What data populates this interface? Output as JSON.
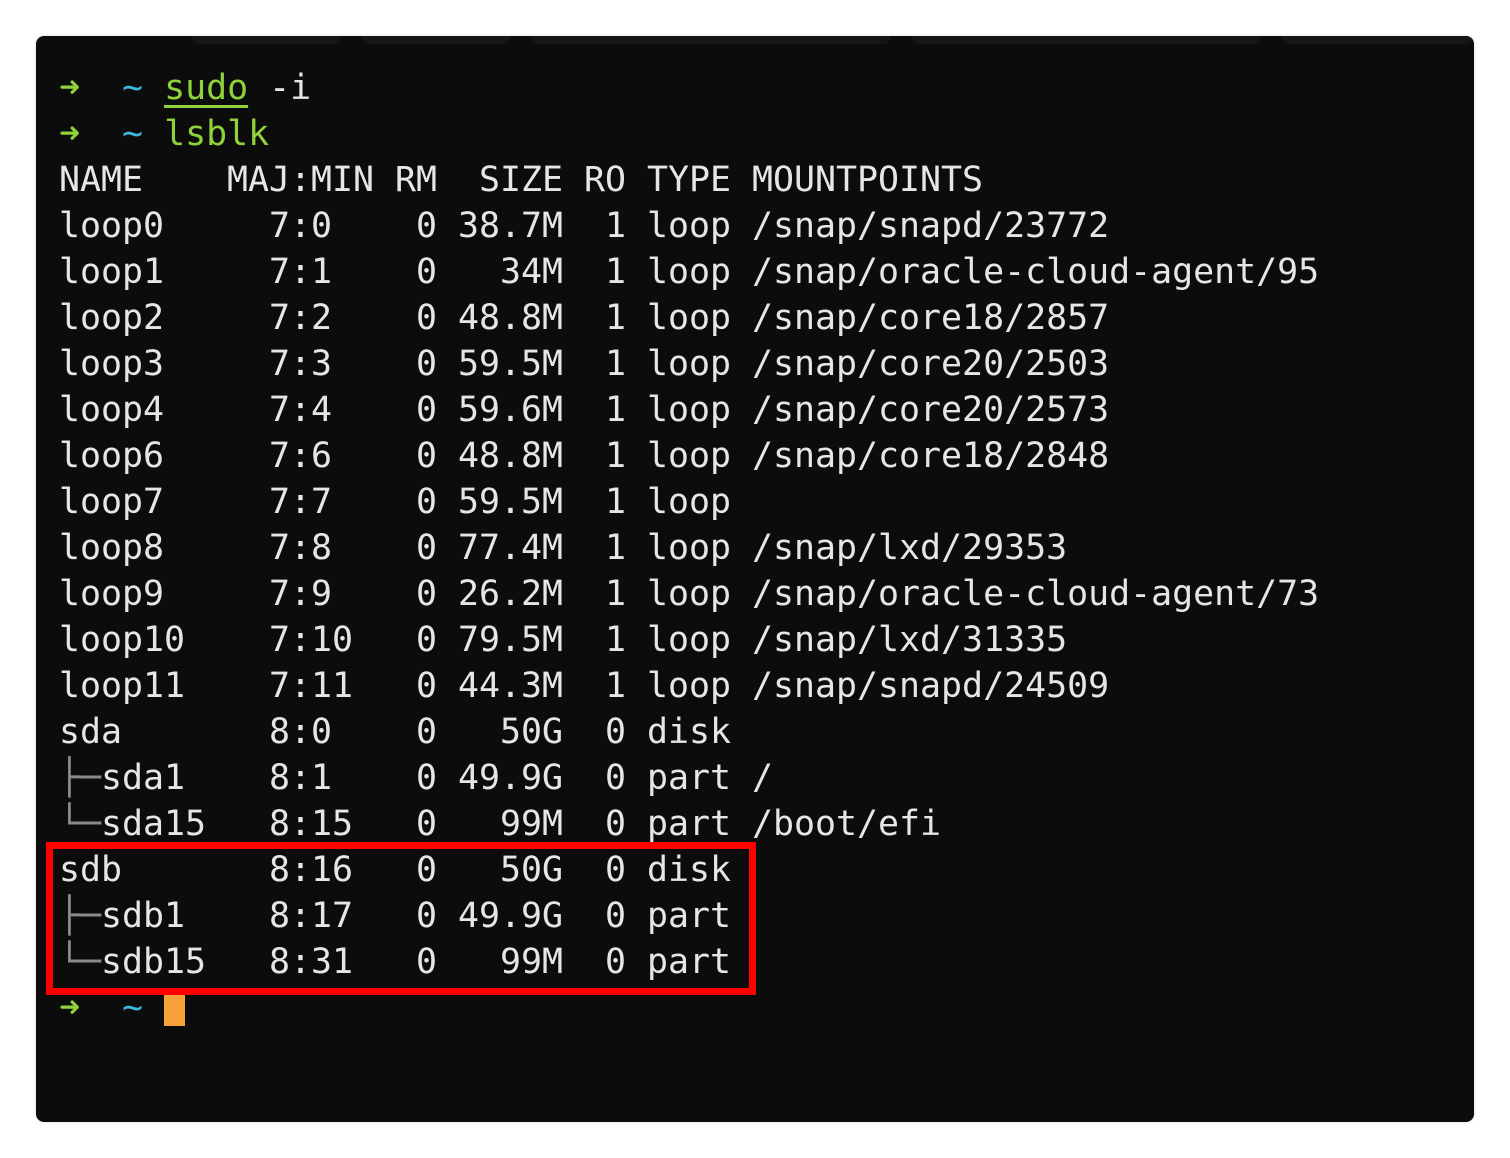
{
  "prompt": {
    "arrow_icon": "arrow-right-icon",
    "arrow": "➜",
    "cwd": "~",
    "arrow_color": "#8fd23a",
    "cwd_color": "#3db8dc"
  },
  "commands": [
    {
      "cmd": "sudo",
      "args": " -i"
    },
    {
      "cmd": "lsblk",
      "args": ""
    }
  ],
  "table": {
    "headers": {
      "name": "NAME",
      "majmin": "MAJ:MIN",
      "rm": "RM",
      "size": "SIZE",
      "ro": "RO",
      "type": "TYPE",
      "mountpoints": "MOUNTPOINTS"
    },
    "rows": [
      {
        "tree": "",
        "name": "loop0",
        "majmin": "7:0",
        "rm": "0",
        "size": "38.7M",
        "ro": "1",
        "type": "loop",
        "mountpoints": "/snap/snapd/23772"
      },
      {
        "tree": "",
        "name": "loop1",
        "majmin": "7:1",
        "rm": "0",
        "size": "34M",
        "ro": "1",
        "type": "loop",
        "mountpoints": "/snap/oracle-cloud-agent/95"
      },
      {
        "tree": "",
        "name": "loop2",
        "majmin": "7:2",
        "rm": "0",
        "size": "48.8M",
        "ro": "1",
        "type": "loop",
        "mountpoints": "/snap/core18/2857"
      },
      {
        "tree": "",
        "name": "loop3",
        "majmin": "7:3",
        "rm": "0",
        "size": "59.5M",
        "ro": "1",
        "type": "loop",
        "mountpoints": "/snap/core20/2503"
      },
      {
        "tree": "",
        "name": "loop4",
        "majmin": "7:4",
        "rm": "0",
        "size": "59.6M",
        "ro": "1",
        "type": "loop",
        "mountpoints": "/snap/core20/2573"
      },
      {
        "tree": "",
        "name": "loop6",
        "majmin": "7:6",
        "rm": "0",
        "size": "48.8M",
        "ro": "1",
        "type": "loop",
        "mountpoints": "/snap/core18/2848"
      },
      {
        "tree": "",
        "name": "loop7",
        "majmin": "7:7",
        "rm": "0",
        "size": "59.5M",
        "ro": "1",
        "type": "loop",
        "mountpoints": ""
      },
      {
        "tree": "",
        "name": "loop8",
        "majmin": "7:8",
        "rm": "0",
        "size": "77.4M",
        "ro": "1",
        "type": "loop",
        "mountpoints": "/snap/lxd/29353"
      },
      {
        "tree": "",
        "name": "loop9",
        "majmin": "7:9",
        "rm": "0",
        "size": "26.2M",
        "ro": "1",
        "type": "loop",
        "mountpoints": "/snap/oracle-cloud-agent/73"
      },
      {
        "tree": "",
        "name": "loop10",
        "majmin": "7:10",
        "rm": "0",
        "size": "79.5M",
        "ro": "1",
        "type": "loop",
        "mountpoints": "/snap/lxd/31335"
      },
      {
        "tree": "",
        "name": "loop11",
        "majmin": "7:11",
        "rm": "0",
        "size": "44.3M",
        "ro": "1",
        "type": "loop",
        "mountpoints": "/snap/snapd/24509"
      },
      {
        "tree": "",
        "name": "sda",
        "majmin": "8:0",
        "rm": "0",
        "size": "50G",
        "ro": "0",
        "type": "disk",
        "mountpoints": ""
      },
      {
        "tree": "├─",
        "name": "sda1",
        "majmin": "8:1",
        "rm": "0",
        "size": "49.9G",
        "ro": "0",
        "type": "part",
        "mountpoints": "/"
      },
      {
        "tree": "└─",
        "name": "sda15",
        "majmin": "8:15",
        "rm": "0",
        "size": "99M",
        "ro": "0",
        "type": "part",
        "mountpoints": "/boot/efi"
      },
      {
        "tree": "",
        "name": "sdb",
        "majmin": "8:16",
        "rm": "0",
        "size": "50G",
        "ro": "0",
        "type": "disk",
        "mountpoints": ""
      },
      {
        "tree": "├─",
        "name": "sdb1",
        "majmin": "8:17",
        "rm": "0",
        "size": "49.9G",
        "ro": "0",
        "type": "part",
        "mountpoints": ""
      },
      {
        "tree": "└─",
        "name": "sdb15",
        "majmin": "8:31",
        "rm": "0",
        "size": "99M",
        "ro": "0",
        "type": "part",
        "mountpoints": ""
      }
    ]
  },
  "highlight": {
    "color": "#ff0000",
    "rows": [
      "sdb",
      "sdb1",
      "sdb15"
    ]
  },
  "cursor": {
    "color": "#f7a13a"
  }
}
